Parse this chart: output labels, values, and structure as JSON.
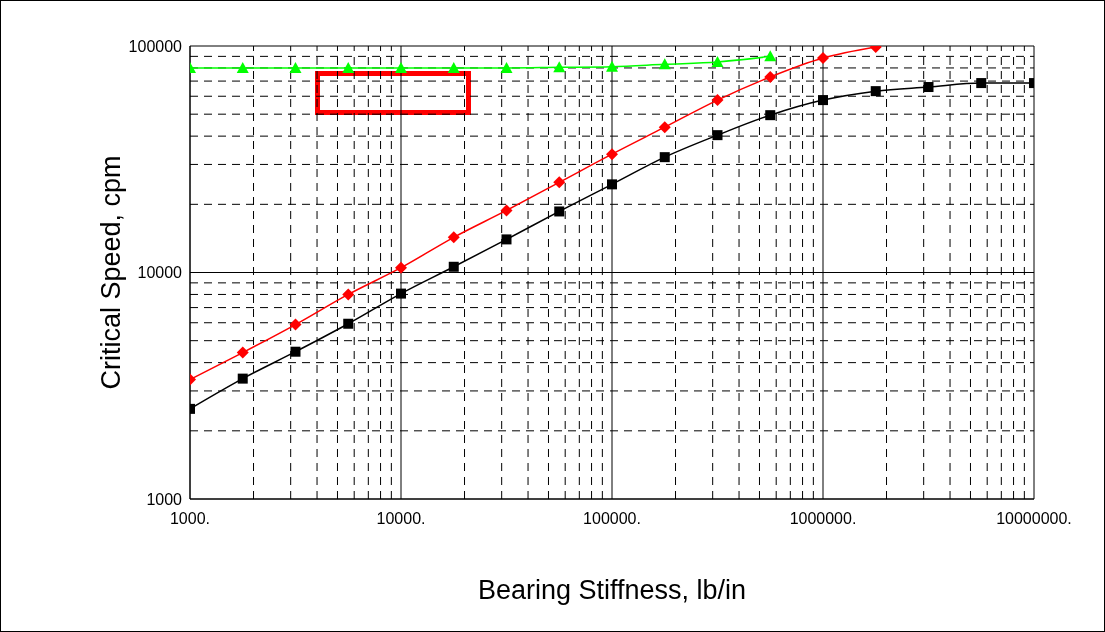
{
  "chart_data": {
    "type": "line",
    "xlabel": "Bearing Stiffness, lb/in",
    "ylabel": "Critical Speed, cpm",
    "log": "xy",
    "grid": true,
    "line_style": "solid",
    "x": [
      1000,
      1778,
      3162,
      5623,
      10000,
      17783,
      31623,
      56234,
      100000,
      177828,
      316228,
      562341,
      1000000,
      1778279,
      3162278,
      5623413,
      10000000
    ],
    "series": [
      {
        "color": "#000000",
        "marker": "square",
        "values": [
          2500,
          3400,
          4470,
          5940,
          8070,
          10600,
          14000,
          18600,
          24500,
          32300,
          40400,
          49500,
          57700,
          63200,
          65900,
          68600,
          68600
        ]
      },
      {
        "color": "#ff0000",
        "marker": "diamond",
        "values": [
          3370,
          4430,
          5890,
          8000,
          10500,
          14300,
          18800,
          25000,
          33300,
          43800,
          57700,
          73000,
          88500,
          99000,
          null,
          null,
          null
        ]
      },
      {
        "color": "#00ff00",
        "marker": "triangle",
        "values": [
          80000,
          80000,
          80000,
          80000,
          80000,
          80000,
          80000,
          80500,
          81000,
          83000,
          85000,
          90000,
          null,
          null,
          null,
          null,
          null
        ]
      }
    ],
    "xlim": [
      1000,
      10000000
    ],
    "ylim": [
      1000,
      100000
    ],
    "xticks": [
      {
        "value": 1000,
        "label": "1000."
      },
      {
        "value": 2000,
        "label": null
      },
      {
        "value": 3000,
        "label": null
      },
      {
        "value": 4000,
        "label": null
      },
      {
        "value": 5000,
        "label": null
      },
      {
        "value": 6000,
        "label": null
      },
      {
        "value": 7000,
        "label": null
      },
      {
        "value": 8000,
        "label": null
      },
      {
        "value": 9000,
        "label": null
      },
      {
        "value": 10000,
        "label": "10000."
      },
      {
        "value": 20000,
        "label": null
      },
      {
        "value": 30000,
        "label": null
      },
      {
        "value": 40000,
        "label": null
      },
      {
        "value": 50000,
        "label": null
      },
      {
        "value": 60000,
        "label": null
      },
      {
        "value": 70000,
        "label": null
      },
      {
        "value": 80000,
        "label": null
      },
      {
        "value": 90000,
        "label": null
      },
      {
        "value": 100000,
        "label": "100000."
      },
      {
        "value": 200000,
        "label": null
      },
      {
        "value": 300000,
        "label": null
      },
      {
        "value": 400000,
        "label": null
      },
      {
        "value": 500000,
        "label": null
      },
      {
        "value": 600000,
        "label": null
      },
      {
        "value": 700000,
        "label": null
      },
      {
        "value": 800000,
        "label": null
      },
      {
        "value": 900000,
        "label": null
      },
      {
        "value": 1000000,
        "label": "1000000."
      },
      {
        "value": 2000000,
        "label": null
      },
      {
        "value": 3000000,
        "label": null
      },
      {
        "value": 4000000,
        "label": null
      },
      {
        "value": 5000000,
        "label": null
      },
      {
        "value": 6000000,
        "label": null
      },
      {
        "value": 7000000,
        "label": null
      },
      {
        "value": 8000000,
        "label": null
      },
      {
        "value": 9000000,
        "label": null
      },
      {
        "value": 10000000,
        "label": "10000000."
      }
    ],
    "yticks": [
      1000,
      {
        "value": 2000,
        "label": null
      },
      {
        "value": 3000,
        "label": null
      },
      {
        "value": 4000,
        "label": null
      },
      {
        "value": 5000,
        "label": null
      },
      {
        "value": 6000,
        "label": null
      },
      {
        "value": 7000,
        "label": null
      },
      {
        "value": 8000,
        "label": null
      },
      {
        "value": 9000,
        "label": null
      },
      10000,
      {
        "value": 20000,
        "label": null
      },
      {
        "value": 30000,
        "label": null
      },
      {
        "value": 40000,
        "label": null
      },
      {
        "value": 50000,
        "label": null
      },
      {
        "value": 60000,
        "label": null
      },
      {
        "value": 70000,
        "label": null
      },
      {
        "value": 80000,
        "label": null
      },
      {
        "value": 90000,
        "label": null
      },
      100000
    ]
  }
}
